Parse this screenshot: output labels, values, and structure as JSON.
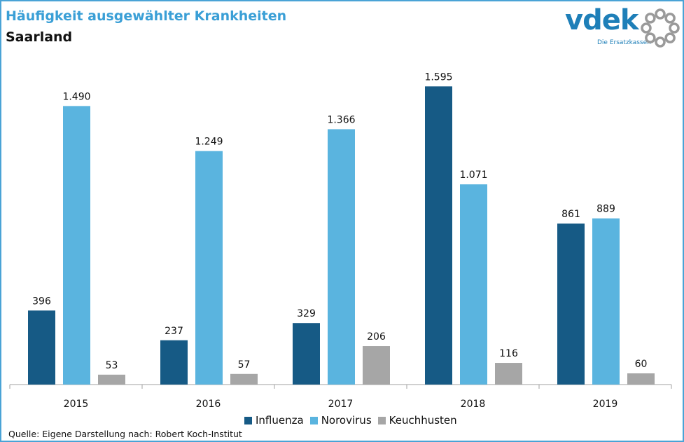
{
  "header": {
    "title": "Häufigkeit ausgewählter Krankheiten",
    "subtitle": "Saarland"
  },
  "logo": {
    "wordmark": "vdek",
    "tagline": "Die Ersatzkassen",
    "color": "#1e7fb8",
    "ring_color": "#9a9a9a"
  },
  "chart_data": {
    "type": "bar",
    "title": "Häufigkeit ausgewählter Krankheiten",
    "subtitle": "Saarland",
    "categories": [
      "2015",
      "2016",
      "2017",
      "2018",
      "2019"
    ],
    "series": [
      {
        "name": "Influenza",
        "color": "#165a85",
        "values": [
          396,
          237,
          329,
          1595,
          861
        ],
        "labels": [
          "396",
          "237",
          "329",
          "1.595",
          "861"
        ]
      },
      {
        "name": "Norovirus",
        "color": "#5ab4df",
        "values": [
          1490,
          1249,
          1366,
          1071,
          889
        ],
        "labels": [
          "1.490",
          "1.249",
          "1.366",
          "1.071",
          "889"
        ]
      },
      {
        "name": "Keuchhusten",
        "color": "#a6a6a6",
        "values": [
          53,
          57,
          206,
          116,
          60
        ],
        "labels": [
          "53",
          "57",
          "206",
          "116",
          "60"
        ]
      }
    ],
    "xlabel": "",
    "ylabel": "",
    "ylim": [
      0,
      1600
    ],
    "grid": false,
    "legend_position": "bottom"
  },
  "source": "Quelle: Eigene Darstellung nach: Robert Koch-Institut"
}
